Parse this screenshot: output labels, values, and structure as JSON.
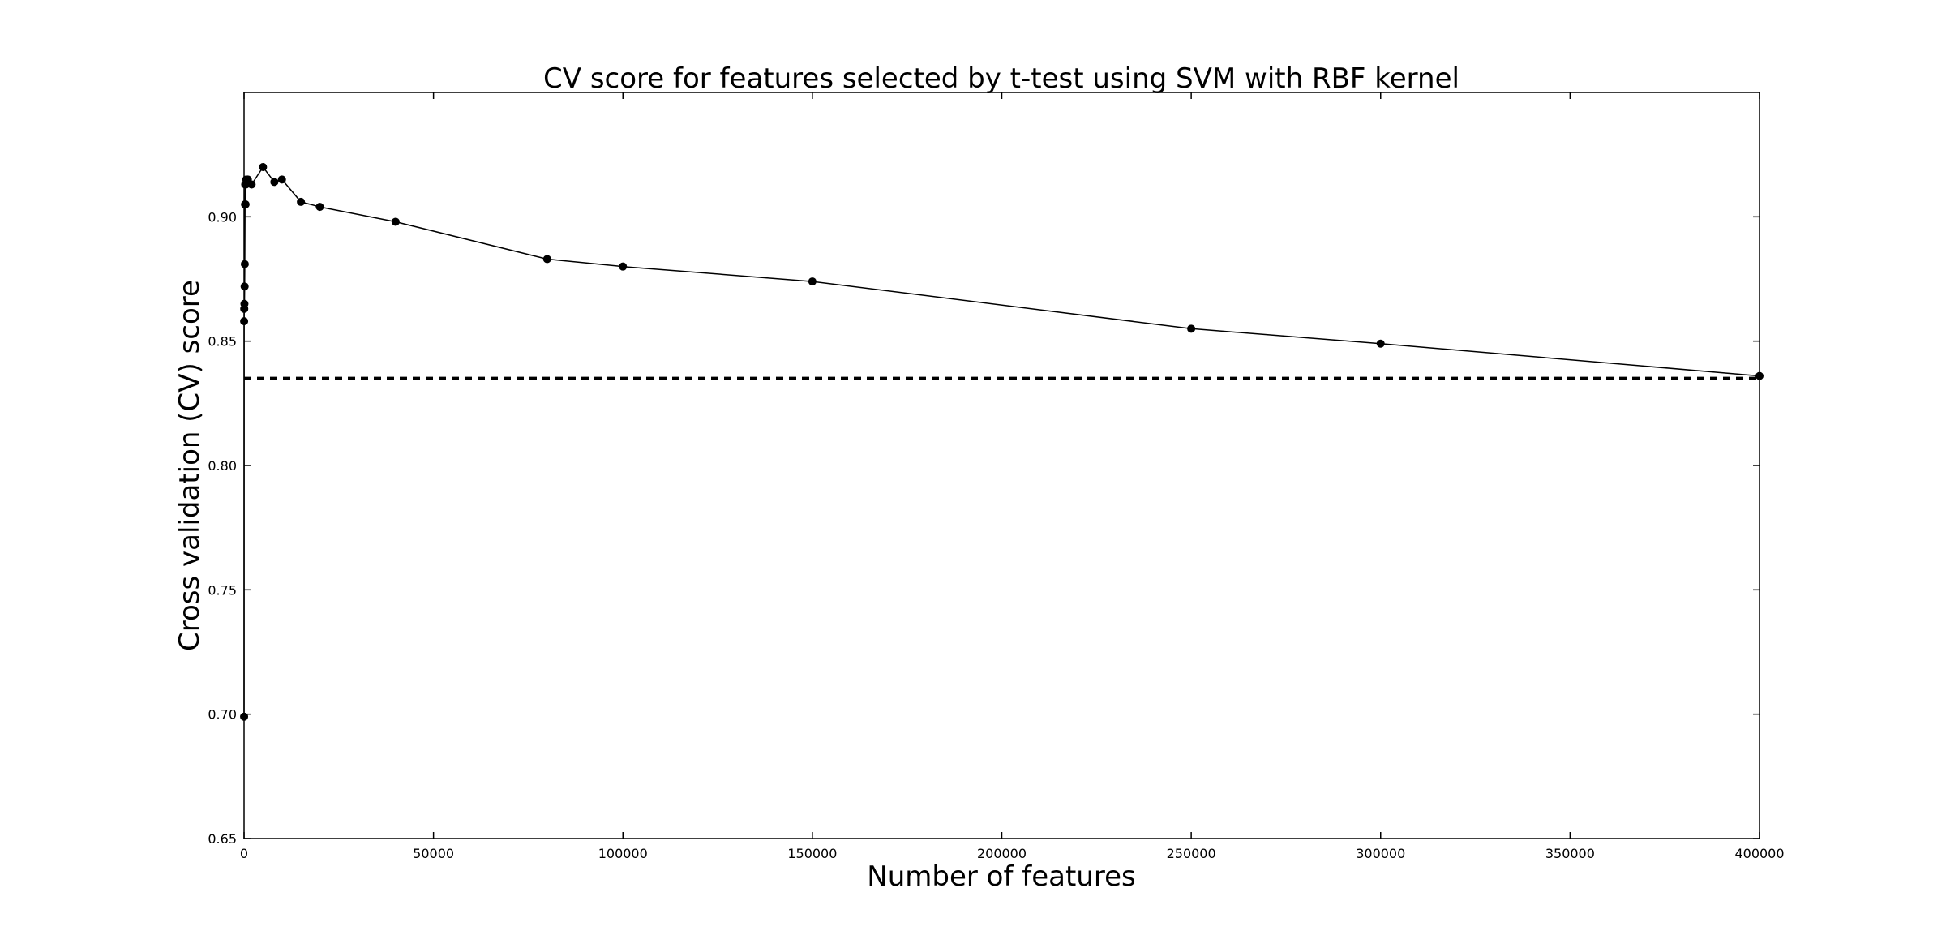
{
  "colors": {
    "background": "#ffffff",
    "line": "#000000",
    "marker": "#000000",
    "baseline": "#000000"
  },
  "chart_data": {
    "type": "line",
    "title": "CV score for features selected by t-test using SVM with RBF kernel",
    "xlabel": "Number of features",
    "ylabel": "Cross validation (CV) score",
    "xlim": [
      0,
      400000
    ],
    "ylim": [
      0.65,
      0.95
    ],
    "xticks": [
      0,
      50000,
      100000,
      150000,
      200000,
      250000,
      300000,
      350000,
      400000
    ],
    "xtick_labels": [
      "0",
      "50000",
      "100000",
      "150000",
      "200000",
      "250000",
      "300000",
      "350000",
      "400000"
    ],
    "yticks": [
      0.65,
      0.7,
      0.75,
      0.8,
      0.85,
      0.9
    ],
    "ytick_labels": [
      "0.65",
      "0.70",
      "0.75",
      "0.80",
      "0.85",
      "0.90"
    ],
    "grid": false,
    "series": [
      {
        "name": "CV score",
        "x": [
          10,
          20,
          50,
          100,
          150,
          200,
          250,
          300,
          400,
          500,
          600,
          1000,
          2000,
          5000,
          8000,
          10000,
          15000,
          20000,
          40000,
          80000,
          100000,
          150000,
          250000,
          300000,
          400000
        ],
        "y": [
          0.699,
          0.858,
          0.863,
          0.865,
          0.872,
          0.881,
          0.905,
          0.913,
          0.905,
          0.913,
          0.915,
          0.915,
          0.913,
          0.92,
          0.914,
          0.915,
          0.906,
          0.904,
          0.898,
          0.883,
          0.88,
          0.874,
          0.855,
          0.849,
          0.836
        ]
      }
    ],
    "baseline": {
      "name": "baseline",
      "y": 0.835,
      "style": "dashed"
    }
  }
}
